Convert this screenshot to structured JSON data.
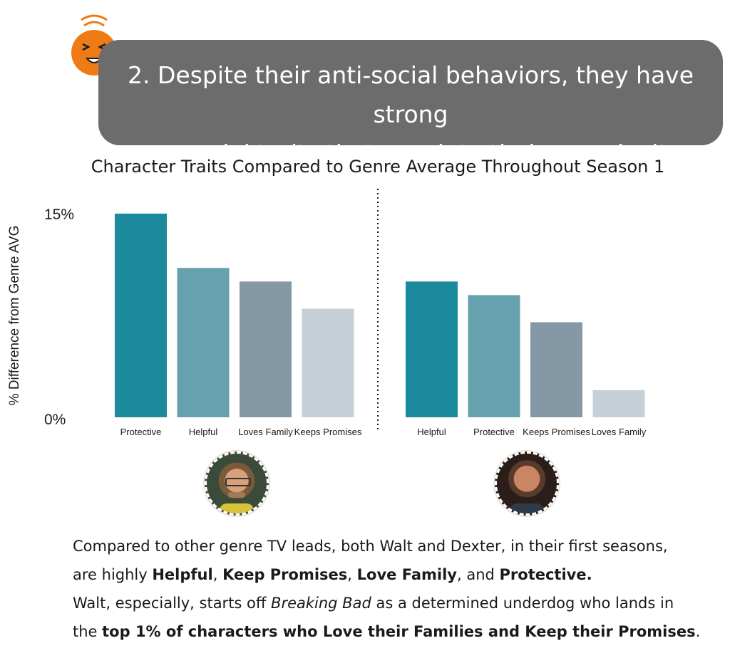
{
  "banner": {
    "line1": "2. Despite their anti-social behaviors, they have strong",
    "line2": "pro-social traits that speak to their complexity."
  },
  "colors": {
    "banner_bg": "#6b6c6b",
    "emoji": "#ef7b16",
    "bar_shades": [
      "#1b8a9c",
      "#67a1ad",
      "#8499a5",
      "#c4d0d6"
    ]
  },
  "icons": {
    "emoji": "laughing-face-icon"
  },
  "chart_data": [
    {
      "type": "bar",
      "title": "Character Traits Compared to Genre Average Throughout Season 1",
      "ylabel": "% Difference from Genre AVG",
      "ytick_labels": [
        "15%",
        "0%"
      ],
      "ylim": [
        0,
        15
      ],
      "categories": [
        "Protective",
        "Helpful",
        "Loves Family",
        "Keeps Promises"
      ],
      "values": [
        15,
        11,
        10,
        8
      ],
      "color_indices": [
        0,
        1,
        2,
        3
      ]
    },
    {
      "type": "bar",
      "categories": [
        "Helpful",
        "Protective",
        "Keeps Promises",
        "Loves Family"
      ],
      "values": [
        10,
        9,
        7,
        2
      ],
      "color_indices": [
        0,
        1,
        2,
        3
      ]
    }
  ],
  "caption": {
    "line1": "Compared to other genre TV leads, both Walt and Dexter, in their first seasons,",
    "line2_a": "are highly ",
    "line2_b": "Helpful",
    "line2_c": ", ",
    "line2_d": "Keep Promises",
    "line2_e": ", ",
    "line2_f": "Love Family",
    "line2_g": ", and ",
    "line2_h": "Protective.",
    "line3_a": "Walt, especially, starts off ",
    "line3_b": "Breaking Bad",
    "line3_c": " as a determined underdog who lands in",
    "line4_a": "the ",
    "line4_b": "top 1% of characters who Love their Families and Keep their Promises",
    "line4_c": "."
  }
}
